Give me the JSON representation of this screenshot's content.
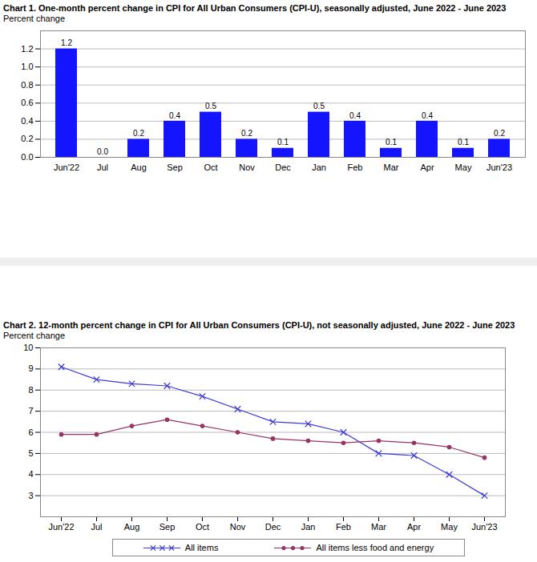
{
  "chart_data": [
    {
      "type": "bar",
      "title": "Chart 1. One-month percent change in CPI for All Urban Consumers (CPI-U), seasonally adjusted, June 2022 - June 2023",
      "y_label": "Percent change",
      "categories": [
        "Jun'22",
        "Jul",
        "Aug",
        "Sep",
        "Oct",
        "Nov",
        "Dec",
        "Jan",
        "Feb",
        "Mar",
        "Apr",
        "May",
        "Jun'23"
      ],
      "values": [
        1.2,
        0.0,
        0.2,
        0.4,
        0.5,
        0.2,
        0.1,
        0.5,
        0.4,
        0.1,
        0.4,
        0.1,
        0.2
      ],
      "value_labels": [
        "1.2",
        "0.0",
        "0.2",
        "0.4",
        "0.5",
        "0.2",
        "0.1",
        "0.5",
        "0.4",
        "0.1",
        "0.4",
        "0.1",
        "0.2"
      ],
      "color": "#1414ff",
      "ylim": [
        0,
        1.4
      ],
      "yticks": [
        {
          "value": 0,
          "label": "0.0"
        },
        0.2,
        0.4,
        0.6,
        0.8,
        {
          "value": 1,
          "label": "1.0"
        },
        1.2
      ],
      "grid": true,
      "data_labels": true
    },
    {
      "type": "line",
      "title": "Chart 2. 12-month percent change in CPI for All Urban Consumers (CPI-U), not seasonally adjusted, June 2022 - June 2023",
      "y_label": "Percent change",
      "categories": [
        "Jun'22",
        "Jul",
        "Aug",
        "Sep",
        "Oct",
        "Nov",
        "Dec",
        "Jan",
        "Feb",
        "Mar",
        "Apr",
        "May",
        "Jun'23"
      ],
      "series": [
        {
          "name": "All items",
          "color": "#3b3bd9",
          "marker": "x",
          "values": [
            9.1,
            8.5,
            8.3,
            8.2,
            7.7,
            7.1,
            6.5,
            6.4,
            6.0,
            5.0,
            4.9,
            4.0,
            3.0
          ]
        },
        {
          "name": "All items less food and energy",
          "color": "#993366",
          "marker": "circle",
          "values": [
            5.9,
            5.9,
            6.3,
            6.6,
            6.3,
            6.0,
            5.7,
            5.6,
            5.5,
            5.6,
            5.5,
            5.3,
            4.8
          ]
        }
      ],
      "ylim": [
        2,
        10
      ],
      "yticks": [
        3,
        4,
        5,
        6,
        7,
        8,
        9,
        10
      ],
      "grid": true,
      "legend": "bottom"
    }
  ]
}
